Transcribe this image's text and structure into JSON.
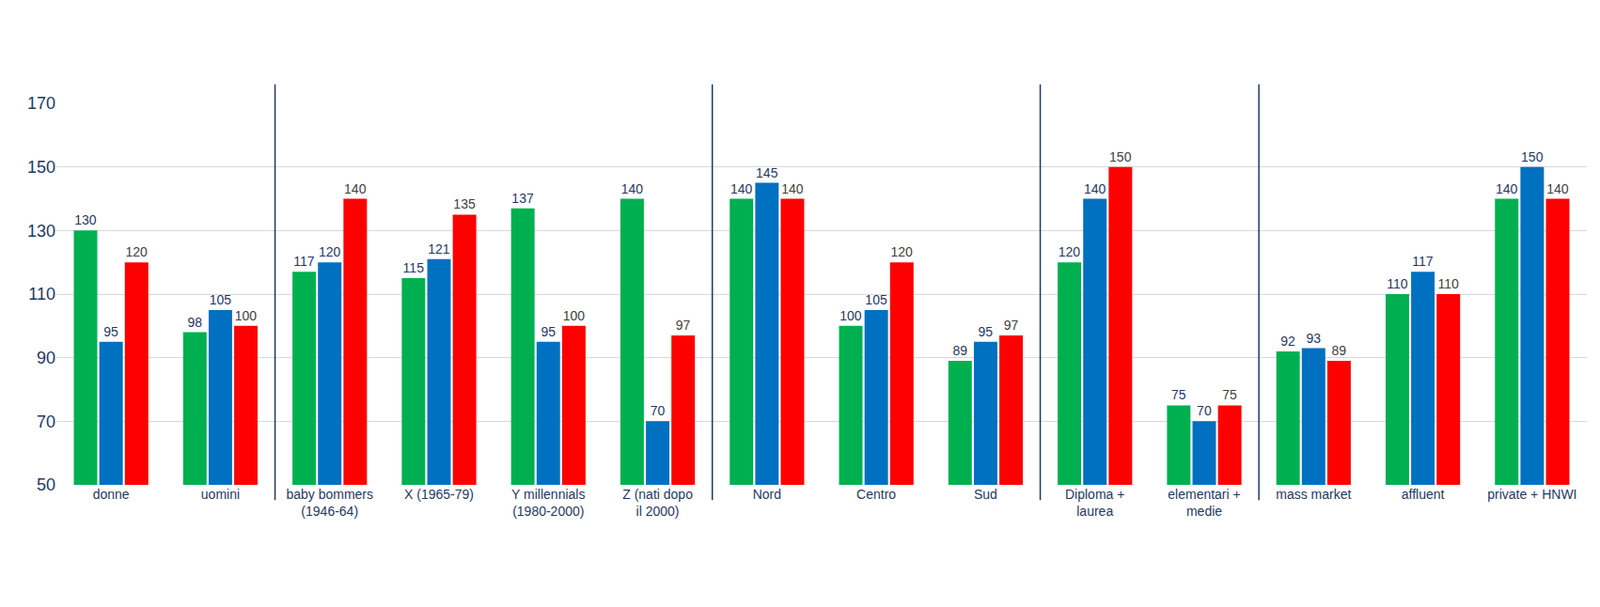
{
  "chart_data": {
    "type": "bar",
    "categories": [
      "donne",
      "uomini",
      "baby bommers (1946-64)",
      "X  (1965-79)",
      "Y millennials (1980-2000)",
      "Z (nati dopo il 2000)",
      "Nord",
      "Centro",
      "Sud",
      "Diploma + laurea",
      "elementari + medie",
      "mass market",
      "affluent",
      "private + HNWI"
    ],
    "series": [
      {
        "color": "#00b050",
        "values": [
          130,
          98,
          117,
          115,
          137,
          140,
          140,
          100,
          89,
          120,
          75,
          92,
          110,
          140
        ]
      },
      {
        "color": "#0070c0",
        "values": [
          95,
          105,
          120,
          121,
          95,
          70,
          145,
          105,
          95,
          140,
          70,
          93,
          117,
          150
        ]
      },
      {
        "color": "#ff0000",
        "values": [
          120,
          100,
          140,
          135,
          100,
          97,
          140,
          120,
          97,
          150,
          75,
          89,
          110,
          140
        ]
      }
    ],
    "ylim": [
      50,
      170
    ],
    "yticks": [
      50,
      70,
      90,
      110,
      130,
      150,
      170
    ],
    "grid": true,
    "data_labels": true
  }
}
